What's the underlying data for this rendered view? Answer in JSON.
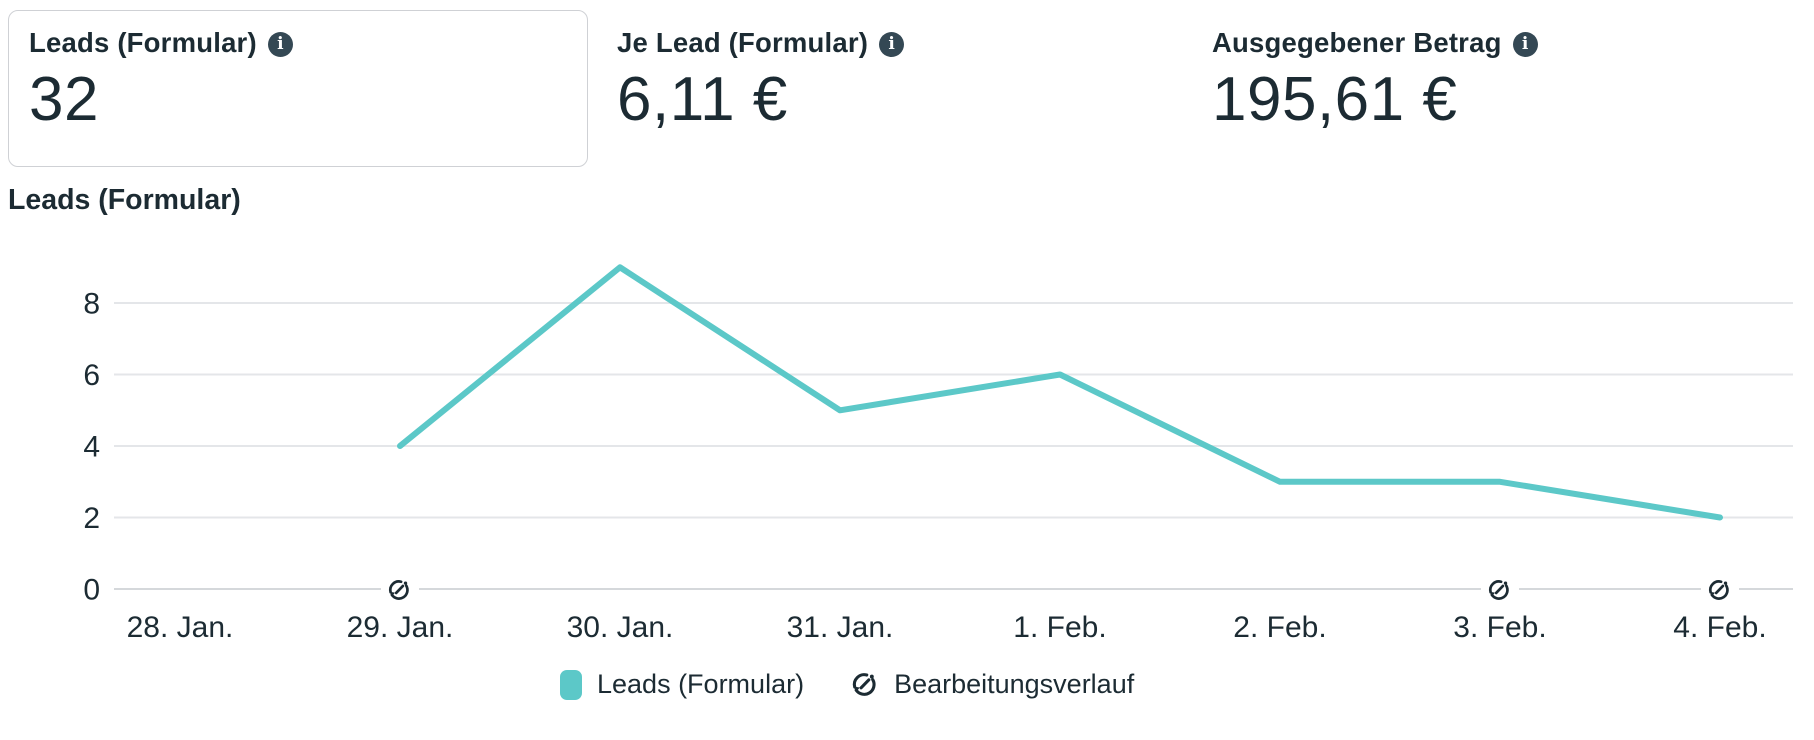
{
  "cards": [
    {
      "label": "Leads (Formular)",
      "value": "32",
      "selected": true
    },
    {
      "label": "Je Lead (Formular)",
      "value": "6,11 €",
      "selected": false
    },
    {
      "label": "Ausgegebener Betrag",
      "value": "195,61 €",
      "selected": false
    }
  ],
  "chart_section": {
    "title": "Leads (Formular)"
  },
  "chart_data": {
    "type": "line",
    "title": "Leads (Formular)",
    "categories": [
      "28. Jan.",
      "29. Jan.",
      "30. Jan.",
      "31. Jan.",
      "1. Feb.",
      "2. Feb.",
      "3. Feb.",
      "4. Feb."
    ],
    "series": [
      {
        "name": "Leads (Formular)",
        "values": [
          null,
          4,
          9,
          5,
          6,
          3,
          3,
          2
        ]
      }
    ],
    "yticks": [
      0,
      2,
      4,
      6,
      8
    ],
    "ylim": [
      0,
      10
    ],
    "grid": "horizontal",
    "legend_position": "bottom",
    "line_color": "#5cc8c8",
    "edit_history_markers": [
      "29. Jan.",
      "3. Feb.",
      "4. Feb."
    ]
  },
  "legend": {
    "series_label": "Leads (Formular)",
    "history_label": "Bearbeitungsverlauf"
  },
  "icons": {
    "info_glyph": "i"
  },
  "colors": {
    "accent_teal": "#5cc8c8",
    "text_dark": "#1c2b33",
    "gridline": "#e4e6e9",
    "zero_line": "#d5d8db",
    "card_border": "#cfd1d5",
    "info_badge": "#344854"
  }
}
